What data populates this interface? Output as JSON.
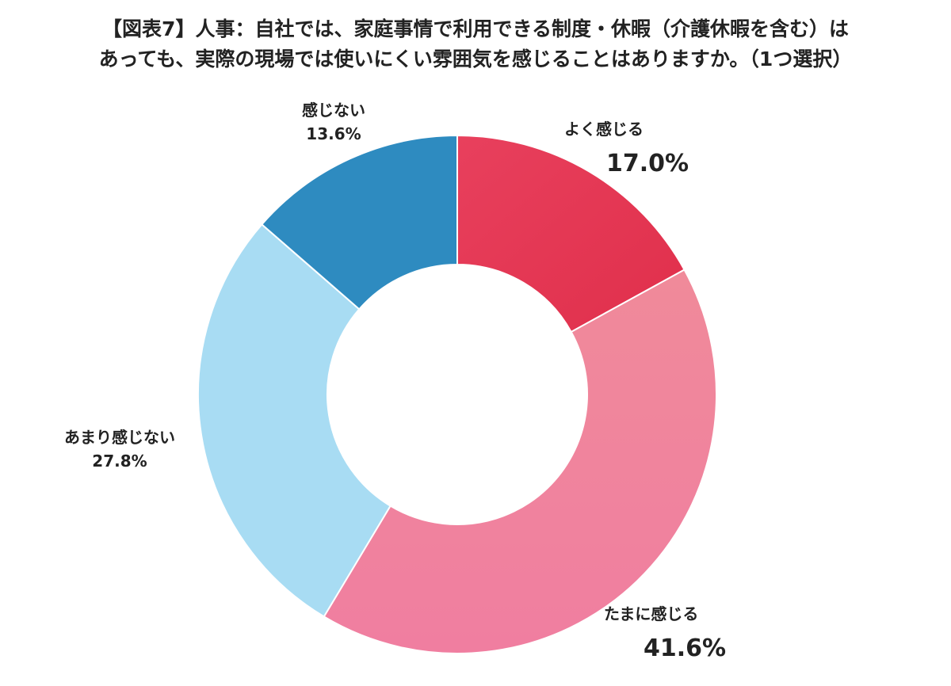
{
  "title_lines": [
    "【図表7】人事：自社では、家庭事情で利用できる制度・休暇（介護休暇を含む）は",
    "あっても、実際の現場では使いにくい雰囲気を感じることはありますか。（1つ選択）"
  ],
  "chart_data": {
    "type": "pie",
    "donut": true,
    "title": "【図表7】人事：自社では、家庭事情で利用できる制度・休暇（介護休暇を含む）はあっても、実際の現場では使いにくい雰囲気を感じることはありますか。（1つ選択）",
    "slices": [
      {
        "label": "よく感じる",
        "value": 17.0,
        "value_label": "17.0%",
        "color": "#e73752",
        "value_color": "#e73752",
        "emphasis": true
      },
      {
        "label": "たまに感じる",
        "value": 41.6,
        "value_label": "41.6%",
        "color": "#f08aa0",
        "value_color": "#e73752",
        "emphasis": true
      },
      {
        "label": "あまり感じない",
        "value": 27.8,
        "value_label": "27.8%",
        "color": "#a8dcf3",
        "value_color": "#222222",
        "emphasis": false
      },
      {
        "label": "感じない",
        "value": 13.6,
        "value_label": "13.6%",
        "color": "#2e8bc0",
        "value_color": "#222222",
        "emphasis": false
      }
    ]
  }
}
